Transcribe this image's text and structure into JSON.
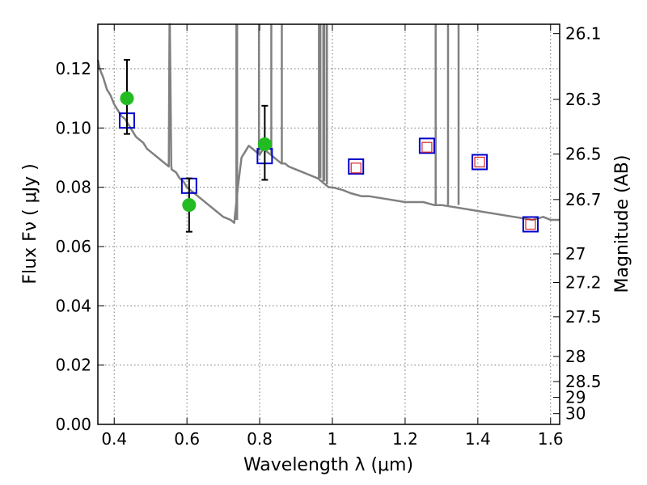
{
  "chart_data": {
    "type": "scatter",
    "title": "",
    "xlabel": "Wavelength  λ (μm)",
    "ylabel": "Flux  Fν  ( μJy )",
    "y2label": "Magnitude (AB)",
    "xlim": [
      0.355,
      1.625
    ],
    "ylim": [
      0.0,
      0.135
    ],
    "x_ticks": [
      0.4,
      0.6,
      0.8,
      1.0,
      1.2,
      1.4,
      1.6
    ],
    "x_tick_labels": [
      "0.4",
      "0.6",
      "0.8",
      "1",
      "1.2",
      "1.4",
      "1.6"
    ],
    "y_ticks": [
      0.0,
      0.02,
      0.04,
      0.06,
      0.08,
      0.1,
      0.12
    ],
    "y_tick_labels": [
      "0.00",
      "0.02",
      "0.04",
      "0.06",
      "0.08",
      "0.10",
      "0.12"
    ],
    "y2_ticks": [
      26.1,
      26.3,
      26.5,
      26.7,
      27,
      27.2,
      27.5,
      28,
      28.5,
      29,
      30
    ],
    "y2_tick_labels": [
      "26.1",
      "26.3",
      "26.5",
      "26.7",
      "27",
      "27.2",
      "27.5",
      "28",
      "28.5",
      "29",
      "30"
    ],
    "grid": true,
    "colors": {
      "model": "#808080",
      "observed": "#22bb22",
      "model_photometry": "#0000cc",
      "upper_limit": "#dd2222",
      "errorbar": "#000000"
    },
    "series": [
      {
        "type": "line",
        "x": [
          0.355,
          0.36,
          0.37,
          0.38,
          0.39,
          0.4,
          0.41,
          0.42,
          0.43,
          0.44,
          0.45,
          0.46,
          0.47,
          0.48,
          0.49,
          0.5,
          0.51,
          0.52,
          0.53,
          0.54,
          0.55,
          0.552,
          0.553,
          0.557,
          0.558,
          0.57,
          0.58,
          0.59,
          0.6,
          0.61,
          0.62,
          0.64,
          0.66,
          0.68,
          0.7,
          0.72,
          0.73,
          0.74,
          0.75,
          0.76,
          0.77,
          0.78,
          0.79,
          0.8,
          0.81,
          0.82,
          0.83,
          0.84,
          0.85,
          0.86,
          0.87,
          0.88,
          0.9,
          0.92,
          0.94,
          0.96,
          0.97,
          0.98,
          0.99,
          1.0,
          1.03,
          1.05,
          1.08,
          1.1,
          1.15,
          1.2,
          1.25,
          1.28,
          1.3,
          1.35,
          1.4,
          1.45,
          1.5,
          1.55,
          1.58,
          1.6,
          1.625
        ],
        "y": [
          0.123,
          0.12,
          0.117,
          0.113,
          0.111,
          0.108,
          0.106,
          0.104,
          0.103,
          0.101,
          0.099,
          0.097,
          0.096,
          0.095,
          0.093,
          0.092,
          0.091,
          0.09,
          0.089,
          0.088,
          0.087,
          0.135,
          0.135,
          0.087,
          0.086,
          0.085,
          0.083,
          0.082,
          0.08,
          0.079,
          0.078,
          0.076,
          0.074,
          0.072,
          0.07,
          0.069,
          0.068,
          0.08,
          0.09,
          0.092,
          0.094,
          0.093,
          0.092,
          0.091,
          0.093,
          0.092,
          0.091,
          0.09,
          0.089,
          0.088,
          0.088,
          0.087,
          0.086,
          0.085,
          0.084,
          0.083,
          0.082,
          0.081,
          0.08,
          0.08,
          0.079,
          0.078,
          0.077,
          0.077,
          0.076,
          0.075,
          0.075,
          0.074,
          0.074,
          0.073,
          0.072,
          0.071,
          0.07,
          0.069,
          0.07,
          0.069,
          0.069
        ]
      },
      {
        "type": "emission-lines",
        "lines": [
          {
            "x": 0.736,
            "y0": 0.069,
            "y1": 0.135
          },
          {
            "x": 0.738,
            "y0": 0.069,
            "y1": 0.135
          },
          {
            "x": 0.798,
            "y0": 0.091,
            "y1": 0.135
          },
          {
            "x": 0.832,
            "y0": 0.091,
            "y1": 0.135
          },
          {
            "x": 0.861,
            "y0": 0.088,
            "y1": 0.135
          },
          {
            "x": 0.963,
            "y0": 0.083,
            "y1": 0.135
          },
          {
            "x": 0.967,
            "y0": 0.083,
            "y1": 0.135
          },
          {
            "x": 0.975,
            "y0": 0.082,
            "y1": 0.135
          },
          {
            "x": 0.978,
            "y0": 0.082,
            "y1": 0.135
          },
          {
            "x": 0.985,
            "y0": 0.081,
            "y1": 0.135
          },
          {
            "x": 1.284,
            "y0": 0.074,
            "y1": 0.135
          },
          {
            "x": 1.318,
            "y0": 0.074,
            "y1": 0.135
          },
          {
            "x": 1.347,
            "y0": 0.074,
            "y1": 0.135
          }
        ]
      },
      {
        "type": "points-with-errors",
        "x": [
          0.435,
          0.606,
          0.814
        ],
        "y": [
          0.11,
          0.074,
          0.0945
        ],
        "yerr_low": [
          0.012,
          0.009,
          0.012
        ],
        "yerr_high": [
          0.013,
          0.009,
          0.013
        ]
      },
      {
        "type": "open-squares",
        "x": [
          0.435,
          0.606,
          0.814,
          1.065,
          1.26,
          1.405,
          1.545
        ],
        "y": [
          0.1025,
          0.0805,
          0.0905,
          0.087,
          0.094,
          0.0885,
          0.0675
        ]
      },
      {
        "type": "upper-limits",
        "x": [
          1.065,
          1.26,
          1.405,
          1.545
        ],
        "y": [
          0.0865,
          0.0935,
          0.0885,
          0.0675
        ]
      }
    ]
  }
}
